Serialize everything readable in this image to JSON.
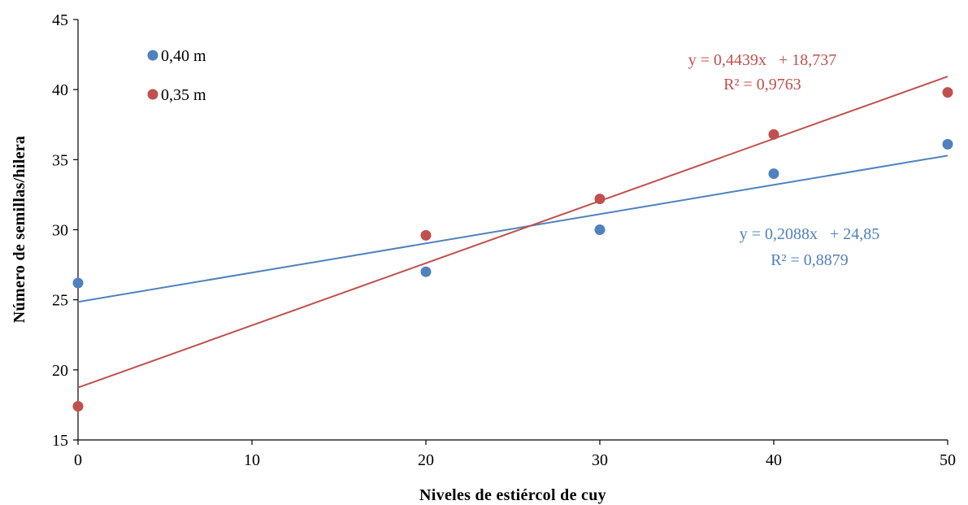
{
  "chart_data": {
    "type": "scatter",
    "xlabel": "Niveles de estiércol de cuy",
    "ylabel": "Número de semillas/hilera",
    "xlim": [
      0,
      50
    ],
    "ylim": [
      15,
      45
    ],
    "xticks": [
      "0",
      "10",
      "20",
      "30",
      "40",
      "50"
    ],
    "yticks": [
      "15",
      "20",
      "25",
      "30",
      "35",
      "40",
      "45"
    ],
    "grid": false,
    "legend_position": "top-left",
    "series": [
      {
        "name": "0,40 m",
        "color": "#4f81bd",
        "x": [
          0,
          20,
          30,
          40,
          50
        ],
        "y": [
          26.2,
          27.0,
          30.0,
          34.0,
          36.1
        ],
        "trendline": {
          "slope": 0.2088,
          "intercept": 24.85
        },
        "equation": "y = 0,2088x   + 24,85",
        "r2": "R² = 0,8879"
      },
      {
        "name": "0,35 m",
        "color": "#c0504d",
        "x": [
          0,
          20,
          30,
          40,
          50
        ],
        "y": [
          17.4,
          29.6,
          32.2,
          36.8,
          39.8
        ],
        "trendline": {
          "slope": 0.4439,
          "intercept": 18.737
        },
        "equation": "y = 0,4439x   + 18,737",
        "r2": "R² = 0,9763"
      }
    ]
  }
}
